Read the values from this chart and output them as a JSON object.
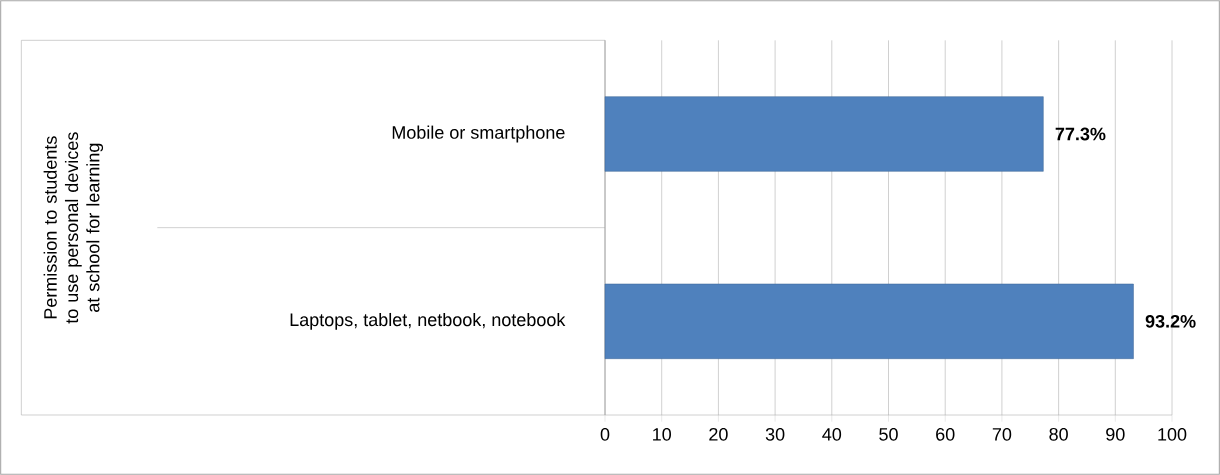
{
  "chart_data": {
    "type": "bar",
    "orientation": "horizontal",
    "annotations": [
      "Permission to students to use personal devices at school for learning"
    ],
    "categories": [
      "Mobile or smartphone",
      "Laptops, tablet, netbook, notebook"
    ],
    "values": [
      77.3,
      93.2
    ],
    "value_labels": [
      "77.3%",
      "93.2%"
    ],
    "color": "#4f81bd",
    "xlim": [
      0,
      100
    ],
    "xticks": [
      0,
      10,
      20,
      30,
      40,
      50,
      60,
      70,
      80,
      90,
      100
    ],
    "grid": "x"
  }
}
